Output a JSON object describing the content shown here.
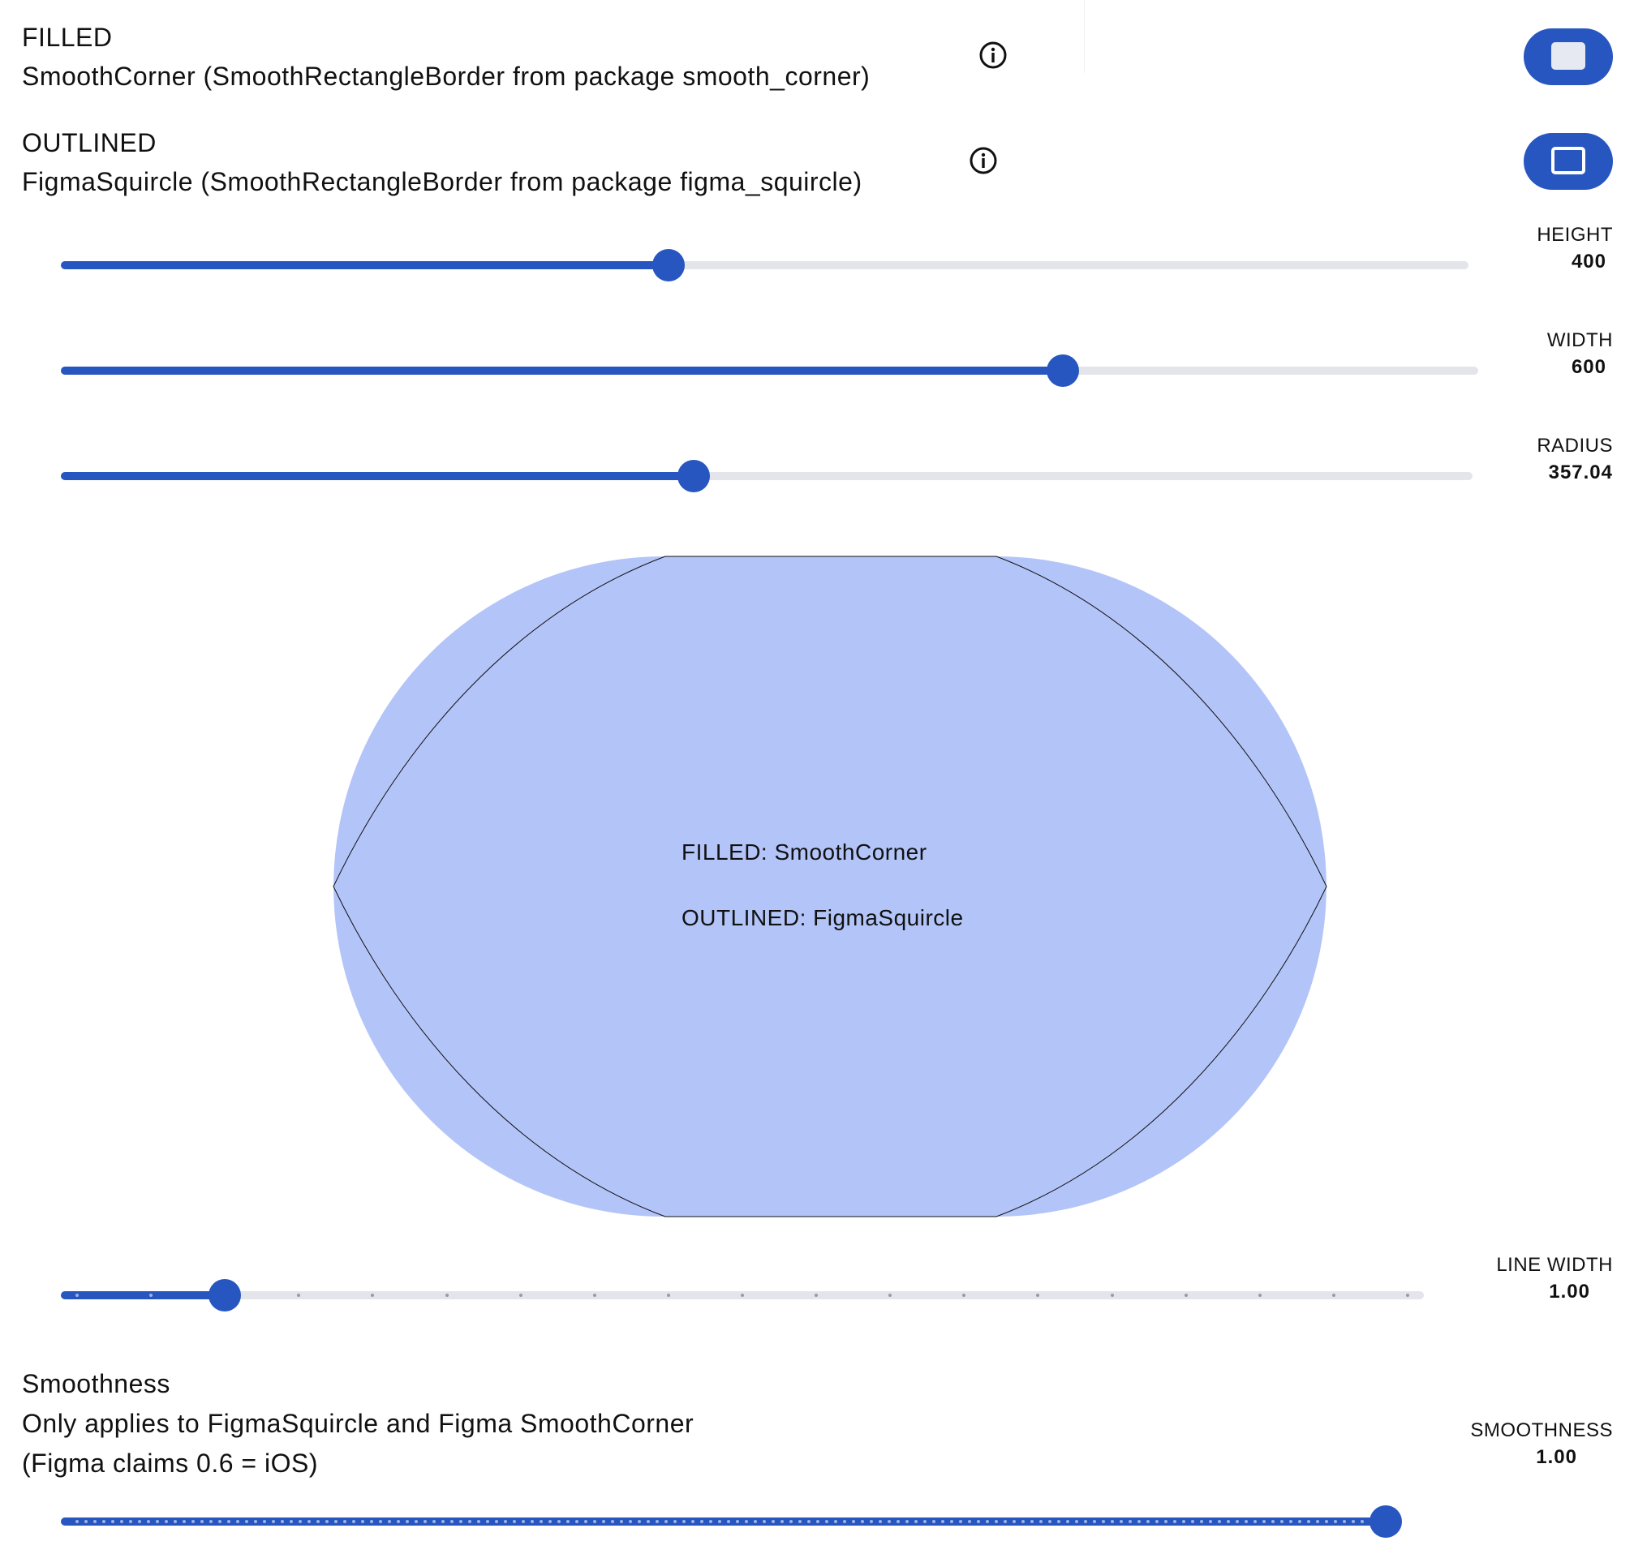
{
  "filled": {
    "title": "FILLED",
    "description": "SmoothCorner (SmoothRectangleBorder from package smooth_corner)"
  },
  "outlined": {
    "title": "OUTLINED",
    "description": "FigmaSquircle (SmoothRectangleBorder from package figma_squircle)"
  },
  "sliders": {
    "height": {
      "label": "HEIGHT",
      "value": "400",
      "fraction": 0.43
    },
    "width": {
      "label": "WIDTH",
      "value": "600",
      "fraction": 0.712
    },
    "radius": {
      "label": "RADIUS",
      "value": "357.04",
      "fraction": 0.447
    },
    "line_width": {
      "label": "LINE WIDTH",
      "value": "1.00",
      "fraction": 0.111,
      "divisions": 18
    },
    "smoothness": {
      "label": "SMOOTHNESS",
      "value": "1.00",
      "fraction": 1.0
    }
  },
  "shape": {
    "filled_caption": "FILLED: SmoothCorner",
    "outlined_caption": "OUTLINED: FigmaSquircle",
    "fill_color": "#b3c4f8",
    "outline_color": "#111111"
  },
  "smoothness_section": {
    "title": "Smoothness",
    "line1": "Only applies to FigmaSquircle and Figma SmoothCorner",
    "line2": "(Figma claims 0.6 = iOS)"
  },
  "colors": {
    "accent": "#2756c1",
    "track": "#e4e4eb"
  },
  "icons": {
    "info": "info-circle-icon",
    "filled_toggle": "filled-square-icon",
    "outlined_toggle": "outlined-square-icon"
  }
}
